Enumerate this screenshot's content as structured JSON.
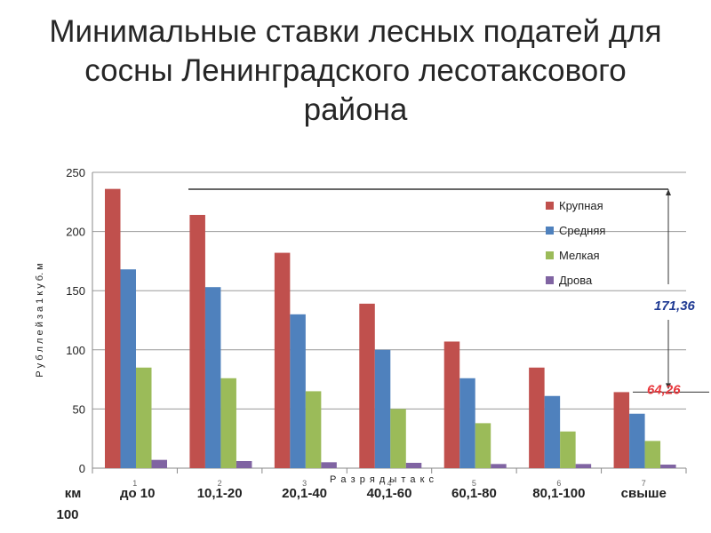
{
  "title_lines": [
    "Минимальные ставки лесных податей для",
    "сосны Ленинградского лесотаксового",
    "района"
  ],
  "chart_data": {
    "type": "bar",
    "title": "Минимальные ставки лесных податей для сосны Ленинградского лесотаксового района",
    "xlabel": "Р а з р я д ы  т а к с",
    "ylabel": "Р у б л л е й  з а 1 к у б. м",
    "ylim": [
      0,
      250
    ],
    "yticks": [
      0,
      50,
      100,
      150,
      200,
      250
    ],
    "categories": [
      "1",
      "2",
      "3",
      "4",
      "5",
      "6",
      "7"
    ],
    "distance_labels": [
      "до 10",
      "10,1-20",
      "20,1-40",
      "40,1-60",
      "60,1-80",
      "80,1-100",
      "свыше"
    ],
    "km_label": "км",
    "km_value": "100",
    "grid": true,
    "legend_position": "top-right",
    "series": [
      {
        "name": "Крупная",
        "color": "#C0504D",
        "values": [
          236,
          214,
          182,
          139,
          107,
          85,
          64.26
        ]
      },
      {
        "name": "Средняя",
        "color": "#4F81BD",
        "values": [
          168,
          153,
          130,
          100,
          76,
          61,
          46
        ]
      },
      {
        "name": "Мелкая",
        "color": "#9BBB59",
        "values": [
          85,
          76,
          65,
          50,
          38,
          31,
          23
        ]
      },
      {
        "name": "Дрова",
        "color": "#8064A2",
        "values": [
          7,
          6,
          5,
          4.5,
          3.5,
          3.5,
          3
        ]
      }
    ],
    "annotations": {
      "difference": "171,36",
      "min_value": "64,26",
      "difference_color": "#1F3A93",
      "min_color": "#E8383D"
    }
  }
}
